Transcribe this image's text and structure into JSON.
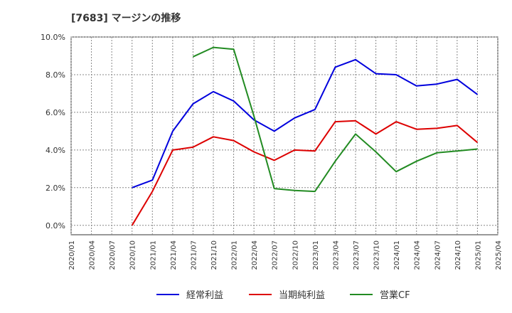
{
  "chart_data": {
    "type": "line",
    "title": "[7683]  マージンの推移",
    "xlabel": "",
    "ylabel": "",
    "ylim": [
      -0.5,
      10.0
    ],
    "y_ticks": [
      0,
      2,
      4,
      6,
      8,
      10
    ],
    "y_tick_labels": [
      "0.0%",
      "2.0%",
      "4.0%",
      "6.0%",
      "8.0%",
      "10.0%"
    ],
    "x_ticks": [
      "2020/01",
      "2020/04",
      "2020/07",
      "2020/10",
      "2021/01",
      "2021/04",
      "2021/07",
      "2021/10",
      "2022/01",
      "2022/04",
      "2022/07",
      "2022/10",
      "2023/01",
      "2023/04",
      "2023/07",
      "2023/10",
      "2024/01",
      "2024/04",
      "2024/07",
      "2024/10",
      "2025/01",
      "2025/04"
    ],
    "grid": true,
    "legend_position": "bottom",
    "series": [
      {
        "name": "経常利益",
        "color": "#0000dd",
        "points": [
          [
            "2020/10",
            2.0
          ],
          [
            "2021/01",
            2.4
          ],
          [
            "2021/04",
            5.0
          ],
          [
            "2021/07",
            6.45
          ],
          [
            "2021/10",
            7.1
          ],
          [
            "2022/01",
            6.6
          ],
          [
            "2022/04",
            5.6
          ],
          [
            "2022/07",
            5.0
          ],
          [
            "2022/10",
            5.7
          ],
          [
            "2023/01",
            6.15
          ],
          [
            "2023/04",
            8.4
          ],
          [
            "2023/07",
            8.8
          ],
          [
            "2023/10",
            8.05
          ],
          [
            "2024/01",
            8.0
          ],
          [
            "2024/04",
            7.4
          ],
          [
            "2024/07",
            7.5
          ],
          [
            "2024/10",
            7.75
          ],
          [
            "2025/01",
            6.95
          ]
        ]
      },
      {
        "name": "当期純利益",
        "color": "#dd0000",
        "points": [
          [
            "2020/10",
            0.0
          ],
          [
            "2021/01",
            1.8
          ],
          [
            "2021/04",
            4.0
          ],
          [
            "2021/07",
            4.15
          ],
          [
            "2021/10",
            4.7
          ],
          [
            "2022/01",
            4.5
          ],
          [
            "2022/04",
            3.9
          ],
          [
            "2022/07",
            3.45
          ],
          [
            "2022/10",
            4.0
          ],
          [
            "2023/01",
            3.95
          ],
          [
            "2023/04",
            5.5
          ],
          [
            "2023/07",
            5.55
          ],
          [
            "2023/10",
            4.85
          ],
          [
            "2024/01",
            5.5
          ],
          [
            "2024/04",
            5.1
          ],
          [
            "2024/07",
            5.15
          ],
          [
            "2024/10",
            5.3
          ],
          [
            "2025/01",
            4.4
          ]
        ]
      },
      {
        "name": "営業CF",
        "color": "#228b22",
        "points": [
          [
            "2021/07",
            8.95
          ],
          [
            "2021/10",
            9.45
          ],
          [
            "2022/01",
            9.35
          ],
          [
            "2022/04",
            5.8
          ],
          [
            "2022/07",
            1.95
          ],
          [
            "2022/10",
            1.85
          ],
          [
            "2023/01",
            1.8
          ],
          [
            "2023/04",
            3.4
          ],
          [
            "2023/07",
            4.85
          ],
          [
            "2023/10",
            3.9
          ],
          [
            "2024/01",
            2.85
          ],
          [
            "2024/04",
            3.4
          ],
          [
            "2024/07",
            3.85
          ],
          [
            "2024/10",
            3.95
          ],
          [
            "2025/01",
            4.05
          ]
        ]
      }
    ]
  }
}
